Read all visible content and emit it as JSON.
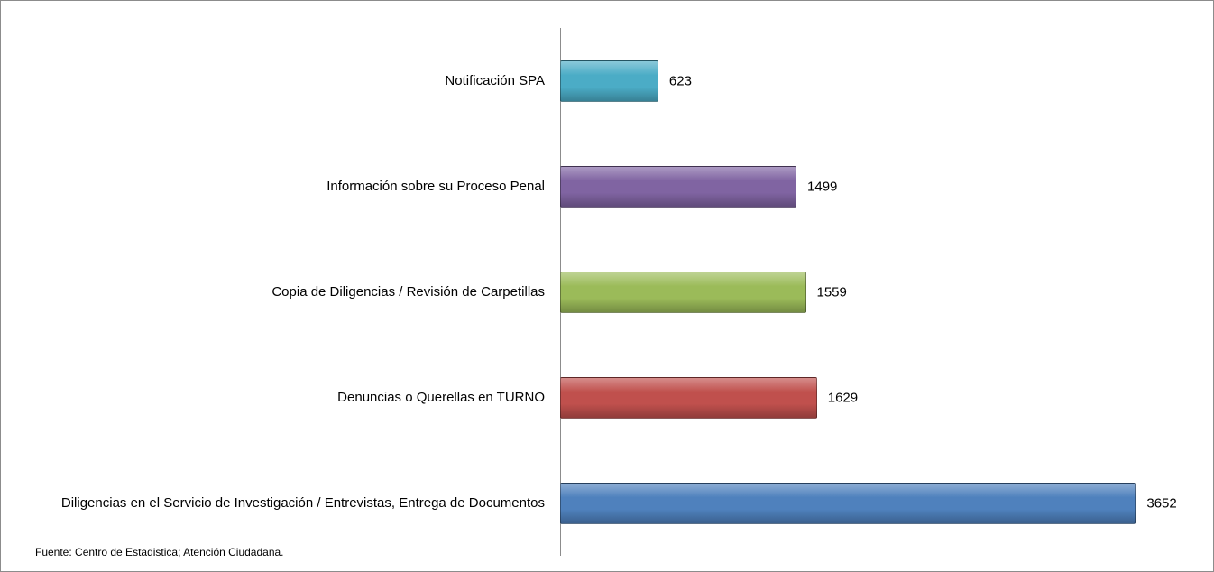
{
  "chart_data": {
    "type": "bar",
    "orientation": "horizontal",
    "categories": [
      "Notificación SPA",
      "Información sobre su Proceso Penal",
      "Copia de Diligencias / Revisión de Carpetillas",
      "Denuncias o Querellas en TURNO",
      "Diligencias en el Servicio de Investigación / Entrevistas, Entrega de Documentos"
    ],
    "values": [
      623,
      1499,
      1559,
      1629,
      3652
    ],
    "colors": [
      "#4bacc6",
      "#8064a2",
      "#9bbb59",
      "#c0504d",
      "#4f81bd"
    ],
    "note": "Fuente: Centro de Estadistica; Atención Ciudadana."
  }
}
